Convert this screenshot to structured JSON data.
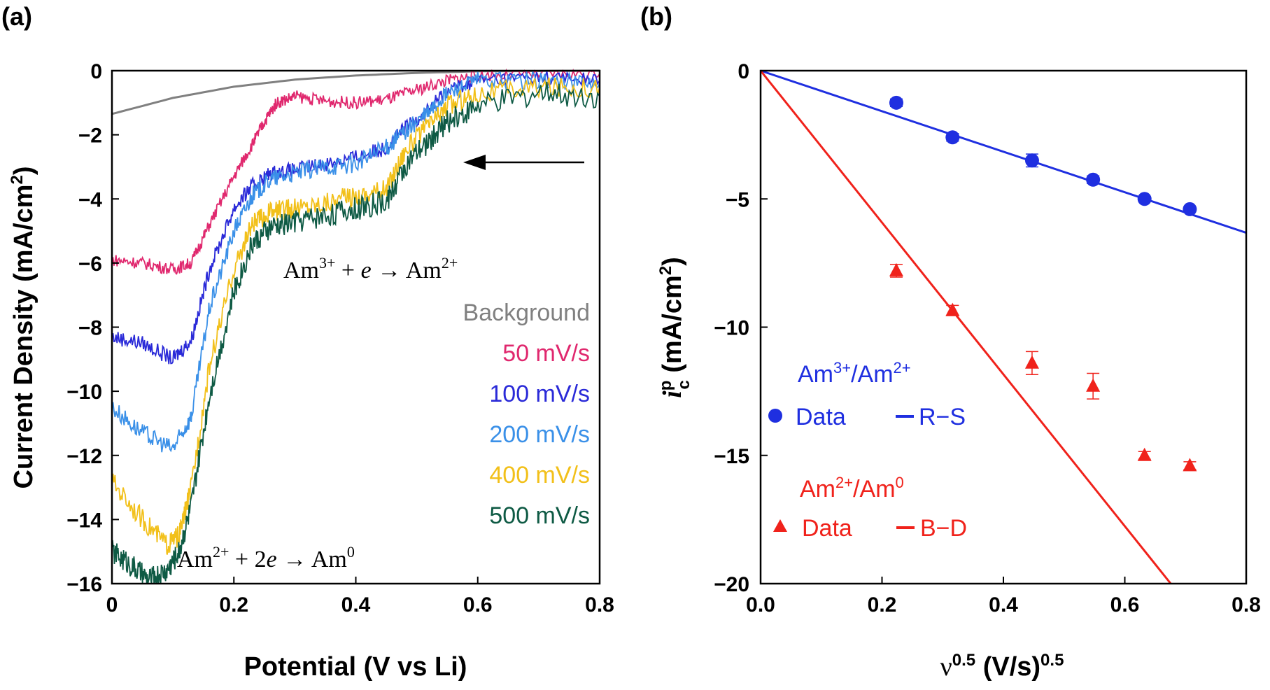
{
  "chart_data": [
    {
      "panel": "(a)",
      "type": "line",
      "xlabel": "Potential (V vs Li)",
      "ylabel": "Current Density (mA/cm²)",
      "ylabel_main": "Current Density (mA/cm",
      "ylabel_sup": "2",
      "ylabel_end": ")",
      "xlim": [
        0,
        0.8
      ],
      "ylim": [
        -16,
        0
      ],
      "x_ticks": [
        0,
        0.2,
        0.4,
        0.6,
        0.8
      ],
      "x_tick_labels": [
        "0",
        "0.2",
        "0.4",
        "0.6",
        "0.8"
      ],
      "y_ticks": [
        0,
        -2,
        -4,
        -6,
        -8,
        -10,
        -12,
        -14,
        -16
      ],
      "y_tick_labels": [
        "0",
        "−2",
        "−4",
        "−6",
        "−8",
        "−10",
        "−12",
        "−14",
        "−16"
      ],
      "grid": false,
      "legend_position": "right",
      "series": [
        {
          "name": "Background",
          "color": "#808080",
          "points": [
            [
              0,
              -1.35
            ],
            [
              0.1,
              -0.85
            ],
            [
              0.2,
              -0.5
            ],
            [
              0.3,
              -0.28
            ],
            [
              0.4,
              -0.15
            ],
            [
              0.5,
              -0.07
            ],
            [
              0.6,
              -0.02
            ],
            [
              0.8,
              0.0
            ]
          ]
        },
        {
          "name": "50 mV/s",
          "color": "#e0286e",
          "points": [
            [
              0,
              -5.9
            ],
            [
              0.05,
              -6.0
            ],
            [
              0.1,
              -6.2
            ],
            [
              0.13,
              -6.0
            ],
            [
              0.16,
              -4.8
            ],
            [
              0.2,
              -3.3
            ],
            [
              0.23,
              -2.3
            ],
            [
              0.25,
              -1.6
            ],
            [
              0.27,
              -1.0
            ],
            [
              0.3,
              -0.8
            ],
            [
              0.35,
              -0.95
            ],
            [
              0.4,
              -1.0
            ],
            [
              0.45,
              -0.9
            ],
            [
              0.5,
              -0.6
            ],
            [
              0.55,
              -0.3
            ],
            [
              0.6,
              -0.15
            ],
            [
              0.7,
              -0.1
            ],
            [
              0.8,
              -0.1
            ]
          ]
        },
        {
          "name": "100 mV/s",
          "color": "#2a2ad8",
          "points": [
            [
              0,
              -8.3
            ],
            [
              0.05,
              -8.5
            ],
            [
              0.1,
              -9.0
            ],
            [
              0.13,
              -8.4
            ],
            [
              0.16,
              -6.2
            ],
            [
              0.2,
              -4.3
            ],
            [
              0.23,
              -3.6
            ],
            [
              0.26,
              -3.2
            ],
            [
              0.3,
              -3.1
            ],
            [
              0.35,
              -2.9
            ],
            [
              0.4,
              -2.7
            ],
            [
              0.45,
              -2.4
            ],
            [
              0.48,
              -1.8
            ],
            [
              0.52,
              -1.2
            ],
            [
              0.55,
              -0.6
            ],
            [
              0.6,
              -0.3
            ],
            [
              0.7,
              -0.2
            ],
            [
              0.8,
              -0.3
            ]
          ]
        },
        {
          "name": "200 mV/s",
          "color": "#3a90e8",
          "points": [
            [
              0,
              -10.5
            ],
            [
              0.05,
              -11.3
            ],
            [
              0.1,
              -11.8
            ],
            [
              0.13,
              -10.8
            ],
            [
              0.16,
              -7.4
            ],
            [
              0.2,
              -5.0
            ],
            [
              0.23,
              -3.9
            ],
            [
              0.26,
              -3.4
            ],
            [
              0.3,
              -3.2
            ],
            [
              0.35,
              -3.0
            ],
            [
              0.4,
              -2.9
            ],
            [
              0.45,
              -2.4
            ],
            [
              0.48,
              -1.9
            ],
            [
              0.52,
              -1.3
            ],
            [
              0.55,
              -0.7
            ],
            [
              0.6,
              -0.3
            ],
            [
              0.7,
              -0.3
            ],
            [
              0.8,
              -0.4
            ]
          ]
        },
        {
          "name": "400 mV/s",
          "color": "#f2c01a",
          "points": [
            [
              0,
              -12.8
            ],
            [
              0.05,
              -14.0
            ],
            [
              0.09,
              -14.8
            ],
            [
              0.11,
              -14.5
            ],
            [
              0.13,
              -13.0
            ],
            [
              0.16,
              -9.2
            ],
            [
              0.2,
              -6.2
            ],
            [
              0.23,
              -4.8
            ],
            [
              0.26,
              -4.4
            ],
            [
              0.3,
              -4.3
            ],
            [
              0.35,
              -4.1
            ],
            [
              0.4,
              -3.9
            ],
            [
              0.45,
              -3.7
            ],
            [
              0.48,
              -2.5
            ],
            [
              0.52,
              -1.7
            ],
            [
              0.55,
              -1.1
            ],
            [
              0.6,
              -0.7
            ],
            [
              0.7,
              -0.5
            ],
            [
              0.8,
              -0.5
            ]
          ]
        },
        {
          "name": "500 mV/s",
          "color": "#0e5a44",
          "points": [
            [
              0,
              -15.0
            ],
            [
              0.03,
              -15.4
            ],
            [
              0.06,
              -15.9
            ],
            [
              0.09,
              -15.6
            ],
            [
              0.11,
              -15.0
            ],
            [
              0.13,
              -13.6
            ],
            [
              0.16,
              -10.1
            ],
            [
              0.2,
              -6.9
            ],
            [
              0.23,
              -5.4
            ],
            [
              0.26,
              -4.9
            ],
            [
              0.3,
              -4.7
            ],
            [
              0.35,
              -4.5
            ],
            [
              0.4,
              -4.3
            ],
            [
              0.45,
              -4.1
            ],
            [
              0.48,
              -3.0
            ],
            [
              0.52,
              -2.2
            ],
            [
              0.55,
              -1.6
            ],
            [
              0.6,
              -1.1
            ],
            [
              0.7,
              -0.7
            ],
            [
              0.8,
              -0.8
            ]
          ]
        }
      ],
      "annotations": {
        "reaction_top": {
          "lhs": "Am",
          "lhs_sup": "3+",
          "mid": " + ",
          "e": "e",
          "arrow": " → ",
          "rhs": "Am",
          "rhs_sup": "2+"
        },
        "reaction_bottom": {
          "lhs": "Am",
          "lhs_sup": "2+",
          "mid": " + 2",
          "e": "e",
          "arrow": " → ",
          "rhs": "Am",
          "rhs_sup": "0"
        },
        "scan_direction": "arrow pointing toward lower potential"
      }
    },
    {
      "panel": "(b)",
      "type": "scatter",
      "xlabel": "ν0.5 (V/s)0.5",
      "xlabel_parts": {
        "nu": "ν",
        "sup1": "0.5",
        "mid": " (V/s)",
        "sup2": "0.5"
      },
      "ylabel": "ip c (mA/cm²)",
      "ylabel_parts": {
        "i": "i",
        "sup": "p",
        "sub": "c",
        "mid": " (mA/cm",
        "sup2": "2",
        "end": ")"
      },
      "xlim": [
        0,
        0.8
      ],
      "ylim": [
        -20,
        0
      ],
      "x_ticks": [
        0,
        0.2,
        0.4,
        0.6,
        0.8
      ],
      "x_tick_labels": [
        "0.0",
        "0.2",
        "0.4",
        "0.6",
        "0.8"
      ],
      "y_ticks": [
        0,
        -5,
        -10,
        -15,
        -20
      ],
      "y_tick_labels": [
        "0",
        "−5",
        "−10",
        "−15",
        "−20"
      ],
      "grid": false,
      "legend_position": "left",
      "groups": [
        {
          "title": "Am",
          "title_sup1": "3+",
          "title_sep": "/Am",
          "title_sup2": "2+",
          "color": "#1f2fe0",
          "data_label": "Data",
          "fit_label": "R−S",
          "marker": "circle",
          "x": [
            0.2236,
            0.3162,
            0.4472,
            0.5477,
            0.6325,
            0.7071
          ],
          "y": [
            -1.25,
            -2.6,
            -3.5,
            -4.25,
            -5.0,
            -5.4
          ],
          "err": [
            0.15,
            0.15,
            0.25,
            0.15,
            0.1,
            0.1
          ],
          "fit": {
            "slope": -7.9,
            "intercept": 0.0
          }
        },
        {
          "title": "Am",
          "title_sup1": "2+",
          "title_sep": "/Am",
          "title_sup2": "0",
          "color": "#f0221b",
          "data_label": "Data",
          "fit_label": "B−D",
          "marker": "triangle",
          "x": [
            0.2236,
            0.3162,
            0.4472,
            0.5477,
            0.6325,
            0.7071
          ],
          "y": [
            -7.8,
            -9.35,
            -11.4,
            -12.3,
            -15.0,
            -15.4
          ],
          "err": [
            0.25,
            0.2,
            0.45,
            0.5,
            0.15,
            0.15
          ],
          "fit": {
            "slope": -29.6,
            "intercept": 0.0
          }
        }
      ]
    }
  ]
}
